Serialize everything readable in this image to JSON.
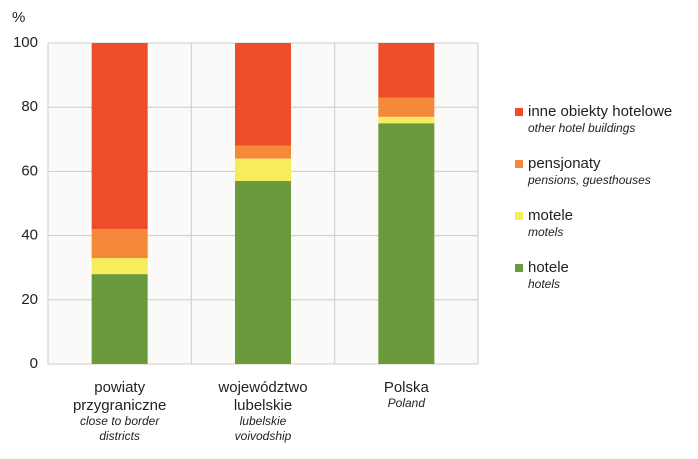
{
  "chart_data": {
    "type": "stacked_bar",
    "y_label": "%",
    "categories": [
      [
        "powiaty",
        "przygraniczne"
      ],
      [
        "województwo",
        "lubelskie"
      ],
      [
        "Polska"
      ]
    ],
    "categories_en": [
      [
        "close to border",
        "districts"
      ],
      [
        "lubelskie",
        "voivodship"
      ],
      [
        "Poland"
      ]
    ],
    "series": [
      {
        "name": "hotele",
        "name_en": "hotels",
        "color": "#6b9a3c",
        "values": [
          28,
          57,
          75
        ]
      },
      {
        "name": "motele",
        "name_en": "motels",
        "color": "#f7ec5a",
        "values": [
          5,
          7,
          2
        ]
      },
      {
        "name": "pensjonaty",
        "name_en": "pensions, guesthouses",
        "color": "#f5893a",
        "values": [
          9,
          4,
          6
        ]
      },
      {
        "name": "inne obiekty hotelowe",
        "name_en": "other hotel buildings",
        "color": "#ef4c2c",
        "values": [
          58,
          32,
          17
        ]
      }
    ],
    "ylim": [
      0,
      100
    ],
    "yticks": [
      0,
      20,
      40,
      60,
      80,
      100
    ],
    "grid": true
  }
}
